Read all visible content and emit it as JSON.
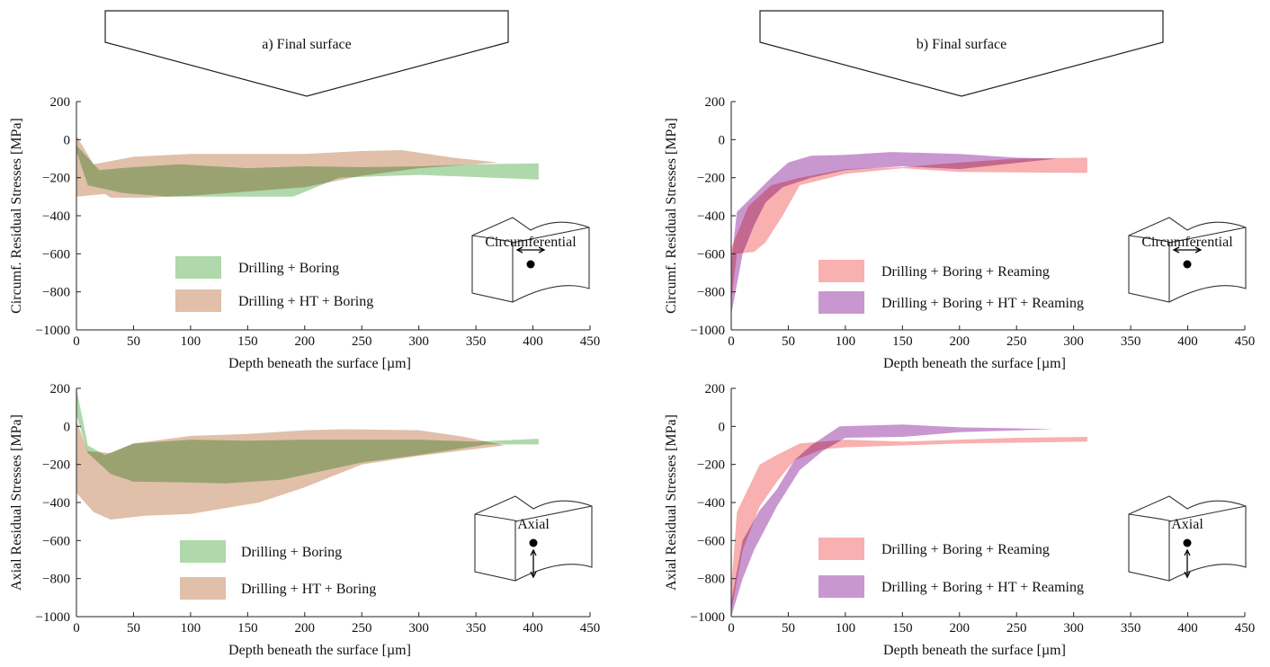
{
  "headers": [
    {
      "id": "a",
      "label": "a) Final surface"
    },
    {
      "id": "b",
      "label": "b) Final surface"
    }
  ],
  "chart_data": [
    {
      "type": "area",
      "panel": "top-left",
      "xlabel": "Depth beneath the surface [µm]",
      "ylabel": "Circumf. Residual Stresses [MPa]",
      "xlim": [
        0,
        450
      ],
      "ylim": [
        -1000,
        200
      ],
      "xticks": [
        0,
        50,
        100,
        150,
        200,
        250,
        300,
        350,
        400,
        450
      ],
      "yticks": [
        200,
        0,
        -200,
        -400,
        -600,
        -800,
        -1000
      ],
      "xtick_labels": [
        "0",
        "50",
        "100",
        "150",
        "200",
        "250",
        "300",
        "350",
        "400",
        "450"
      ],
      "ytick_labels": [
        "200",
        "0",
        "−200",
        "−400",
        "−600",
        "−800",
        "−1000"
      ],
      "legend_position": "bottom-left",
      "inset_label": "Circumferential",
      "inset_type": "circumferential",
      "series": [
        {
          "name": "Drilling + Boring",
          "color": "#a8d5a4",
          "upper": [
            [
              0,
              -30
            ],
            [
              20,
              -160
            ],
            [
              50,
              -145
            ],
            [
              90,
              -130
            ],
            [
              150,
              -150
            ],
            [
              200,
              -140
            ],
            [
              250,
              -145
            ],
            [
              300,
              -140
            ],
            [
              350,
              -130
            ],
            [
              405,
              -125
            ]
          ],
          "lower": [
            [
              0,
              -60
            ],
            [
              10,
              -240
            ],
            [
              40,
              -280
            ],
            [
              80,
              -300
            ],
            [
              130,
              -300
            ],
            [
              190,
              -300
            ],
            [
              210,
              -250
            ],
            [
              230,
              -200
            ],
            [
              300,
              -185
            ],
            [
              405,
              -210
            ]
          ]
        },
        {
          "name": "Drilling + HT + Boring",
          "color": "#d4a788",
          "upper": [
            [
              0,
              20
            ],
            [
              15,
              -130
            ],
            [
              50,
              -90
            ],
            [
              100,
              -75
            ],
            [
              150,
              -75
            ],
            [
              200,
              -75
            ],
            [
              250,
              -60
            ],
            [
              285,
              -55
            ],
            [
              330,
              -95
            ],
            [
              370,
              -120
            ]
          ],
          "lower": [
            [
              0,
              -300
            ],
            [
              25,
              -285
            ],
            [
              30,
              -305
            ],
            [
              60,
              -305
            ],
            [
              100,
              -295
            ],
            [
              200,
              -250
            ],
            [
              250,
              -190
            ],
            [
              300,
              -150
            ],
            [
              370,
              -120
            ]
          ]
        }
      ]
    },
    {
      "type": "area",
      "panel": "top-right",
      "xlabel": "Depth beneath the surface [µm]",
      "ylabel": "Circumf. Residual Stresses [MPa]",
      "xlim": [
        0,
        450
      ],
      "ylim": [
        -1000,
        200
      ],
      "xticks": [
        0,
        50,
        100,
        150,
        200,
        250,
        300,
        350,
        400,
        450
      ],
      "yticks": [
        200,
        0,
        -200,
        -400,
        -600,
        -800,
        -1000
      ],
      "xtick_labels": [
        "0",
        "50",
        "100",
        "150",
        "200",
        "250",
        "300",
        "350",
        "400",
        "450"
      ],
      "ytick_labels": [
        "200",
        "0",
        "−200",
        "−400",
        "−600",
        "−800",
        "−1000"
      ],
      "legend_position": "bottom-left",
      "inset_label": "Circumferential",
      "inset_type": "circumferential",
      "series": [
        {
          "name": "Drilling + Boring + Reaming",
          "color": "#f7a9a9",
          "upper": [
            [
              0,
              -570
            ],
            [
              15,
              -350
            ],
            [
              35,
              -240
            ],
            [
              60,
              -200
            ],
            [
              100,
              -155
            ],
            [
              150,
              -145
            ],
            [
              200,
              -120
            ],
            [
              250,
              -100
            ],
            [
              312,
              -95
            ]
          ],
          "lower": [
            [
              0,
              -850
            ],
            [
              5,
              -600
            ],
            [
              20,
              -590
            ],
            [
              30,
              -540
            ],
            [
              45,
              -400
            ],
            [
              60,
              -240
            ],
            [
              100,
              -180
            ],
            [
              150,
              -150
            ],
            [
              200,
              -170
            ],
            [
              312,
              -175
            ]
          ]
        },
        {
          "name": "Drilling + Boring + HT + Reaming",
          "color": "#b46fbe",
          "upper": [
            [
              0,
              -650
            ],
            [
              5,
              -380
            ],
            [
              20,
              -290
            ],
            [
              35,
              -200
            ],
            [
              50,
              -120
            ],
            [
              70,
              -85
            ],
            [
              100,
              -80
            ],
            [
              140,
              -65
            ],
            [
              200,
              -75
            ],
            [
              250,
              -95
            ],
            [
              285,
              -100
            ]
          ],
          "lower": [
            [
              0,
              -920
            ],
            [
              10,
              -600
            ],
            [
              20,
              -450
            ],
            [
              30,
              -330
            ],
            [
              45,
              -250
            ],
            [
              70,
              -200
            ],
            [
              100,
              -160
            ],
            [
              150,
              -140
            ],
            [
              200,
              -155
            ],
            [
              285,
              -100
            ]
          ]
        }
      ]
    },
    {
      "type": "area",
      "panel": "bottom-left",
      "xlabel": "Depth beneath the surface [µm]",
      "ylabel": "Axial Residual Stresses [MPa]",
      "xlim": [
        0,
        450
      ],
      "ylim": [
        -1000,
        200
      ],
      "xticks": [
        0,
        50,
        100,
        150,
        200,
        250,
        300,
        350,
        400,
        450
      ],
      "yticks": [
        200,
        0,
        -200,
        -400,
        -600,
        -800,
        -1000
      ],
      "xtick_labels": [
        "0",
        "50",
        "100",
        "150",
        "200",
        "250",
        "300",
        "350",
        "400",
        "450"
      ],
      "ytick_labels": [
        "200",
        "0",
        "−200",
        "−400",
        "−600",
        "−800",
        "−1000"
      ],
      "legend_position": "bottom-left",
      "inset_label": "Axial",
      "inset_type": "axial",
      "series": [
        {
          "name": "Drilling + Boring",
          "color": "#a8d5a4",
          "upper": [
            [
              0,
              200
            ],
            [
              10,
              -100
            ],
            [
              25,
              -150
            ],
            [
              50,
              -90
            ],
            [
              100,
              -70
            ],
            [
              150,
              -75
            ],
            [
              200,
              -70
            ],
            [
              250,
              -70
            ],
            [
              300,
              -70
            ],
            [
              350,
              -80
            ],
            [
              405,
              -65
            ]
          ],
          "lower": [
            [
              0,
              60
            ],
            [
              10,
              -140
            ],
            [
              30,
              -250
            ],
            [
              50,
              -290
            ],
            [
              100,
              -295
            ],
            [
              130,
              -300
            ],
            [
              180,
              -280
            ],
            [
              250,
              -190
            ],
            [
              300,
              -150
            ],
            [
              360,
              -95
            ],
            [
              405,
              -95
            ]
          ]
        },
        {
          "name": "Drilling + HT + Boring",
          "color": "#d4a788",
          "upper": [
            [
              0,
              30
            ],
            [
              10,
              -130
            ],
            [
              30,
              -140
            ],
            [
              50,
              -90
            ],
            [
              100,
              -50
            ],
            [
              150,
              -40
            ],
            [
              200,
              -20
            ],
            [
              235,
              -15
            ],
            [
              300,
              -20
            ],
            [
              340,
              -55
            ],
            [
              375,
              -100
            ]
          ],
          "lower": [
            [
              0,
              -350
            ],
            [
              15,
              -450
            ],
            [
              30,
              -490
            ],
            [
              60,
              -470
            ],
            [
              100,
              -460
            ],
            [
              160,
              -400
            ],
            [
              200,
              -320
            ],
            [
              250,
              -200
            ],
            [
              300,
              -155
            ],
            [
              375,
              -100
            ]
          ]
        }
      ]
    },
    {
      "type": "area",
      "panel": "bottom-right",
      "xlabel": "Depth beneath the surface [µm]",
      "ylabel": "Axial Residual Stresses [MPa]",
      "xlim": [
        0,
        450
      ],
      "ylim": [
        -1000,
        200
      ],
      "xticks": [
        0,
        50,
        100,
        150,
        200,
        250,
        300,
        350,
        400,
        450
      ],
      "yticks": [
        200,
        0,
        -200,
        -400,
        -600,
        -800,
        -1000
      ],
      "xtick_labels": [
        "0",
        "50",
        "100",
        "150",
        "200",
        "250",
        "300",
        "350",
        "400",
        "450"
      ],
      "ytick_labels": [
        "200",
        "0",
        "−200",
        "−400",
        "−600",
        "−800",
        "−1000"
      ],
      "legend_position": "bottom-left",
      "inset_label": "Axial",
      "inset_type": "axial",
      "series": [
        {
          "name": "Drilling + Boring + Reaming",
          "color": "#f7a9a9",
          "upper": [
            [
              0,
              -850
            ],
            [
              5,
              -450
            ],
            [
              25,
              -200
            ],
            [
              40,
              -150
            ],
            [
              60,
              -90
            ],
            [
              80,
              -80
            ],
            [
              100,
              -70
            ],
            [
              150,
              -80
            ],
            [
              200,
              -70
            ],
            [
              250,
              -60
            ],
            [
              312,
              -55
            ]
          ],
          "lower": [
            [
              0,
              -970
            ],
            [
              10,
              -650
            ],
            [
              25,
              -420
            ],
            [
              40,
              -290
            ],
            [
              55,
              -180
            ],
            [
              80,
              -120
            ],
            [
              100,
              -110
            ],
            [
              150,
              -100
            ],
            [
              200,
              -90
            ],
            [
              312,
              -80
            ]
          ]
        },
        {
          "name": "Drilling + Boring + HT + Reaming",
          "color": "#b46fbe",
          "upper": [
            [
              0,
              -920
            ],
            [
              10,
              -600
            ],
            [
              25,
              -440
            ],
            [
              40,
              -330
            ],
            [
              55,
              -180
            ],
            [
              70,
              -100
            ],
            [
              95,
              0
            ],
            [
              150,
              10
            ],
            [
              200,
              -5
            ],
            [
              250,
              -10
            ],
            [
              283,
              -15
            ]
          ],
          "lower": [
            [
              0,
              -1000
            ],
            [
              10,
              -800
            ],
            [
              20,
              -650
            ],
            [
              40,
              -420
            ],
            [
              60,
              -230
            ],
            [
              80,
              -130
            ],
            [
              100,
              -60
            ],
            [
              150,
              -55
            ],
            [
              200,
              -30
            ],
            [
              283,
              -15
            ]
          ]
        }
      ]
    }
  ]
}
